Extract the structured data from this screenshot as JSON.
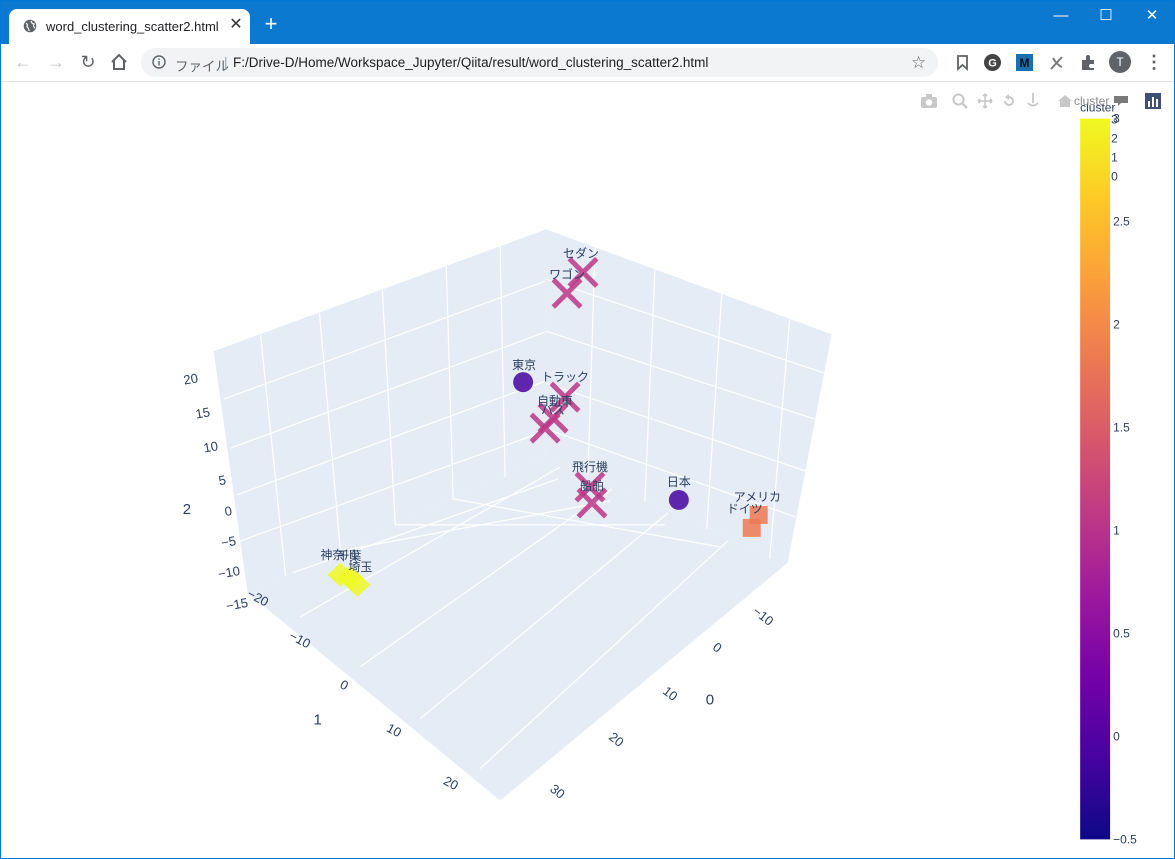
{
  "tab": {
    "title": "word_clustering_scatter2.html"
  },
  "window_controls": {
    "minimize": "—",
    "maximize": "☐",
    "close": "✕"
  },
  "address_bar": {
    "scheme_label": "ファイル",
    "separator": "|",
    "url": "F:/Drive-D/Home/Workspace_Jupyter/Qiita/result/word_clustering_scatter2.html"
  },
  "profile": {
    "initial": "T"
  },
  "modebar": {
    "tooltip": "cluster"
  },
  "colors": {
    "chrome_blue": "#0b79d0",
    "scene_bg": "#e5ecf6",
    "grid": "#ffffff"
  },
  "chart_data": {
    "type": "scatter",
    "scene": "3d",
    "axes": {
      "x": {
        "title": "0",
        "ticks": [
          "−10",
          "0",
          "10",
          "20",
          "30"
        ]
      },
      "y": {
        "title": "1",
        "ticks": [
          "−20",
          "−10",
          "0",
          "10",
          "20"
        ]
      },
      "z": {
        "title": "2",
        "ticks": [
          "−15",
          "−10",
          "−5",
          "0",
          "5",
          "10",
          "15",
          "20"
        ]
      }
    },
    "colorbar": {
      "title": "cluster",
      "ticks": [
        "−0.5",
        "0",
        "0.5",
        "1",
        "1.5",
        "2",
        "2.5",
        "3"
      ],
      "range": [
        -0.5,
        3
      ],
      "colorscale": [
        "#0d0887",
        "#46039f",
        "#7201a8",
        "#9c179e",
        "#bd3786",
        "#d8576b",
        "#ed7953",
        "#fb9f3a",
        "#fdca26",
        "#f0f921"
      ]
    },
    "legend": {
      "markers": [
        "3",
        "2",
        "1",
        "0"
      ]
    },
    "points": [
      {
        "label": "セダン",
        "cluster": 1,
        "symbol": "x"
      },
      {
        "label": "ワゴン",
        "cluster": 1,
        "symbol": "x"
      },
      {
        "label": "トラック",
        "cluster": 1,
        "symbol": "x"
      },
      {
        "label": "自動車",
        "cluster": 1,
        "symbol": "x"
      },
      {
        "label": "バス",
        "cluster": 1,
        "symbol": "x"
      },
      {
        "label": "飛行機",
        "cluster": 1,
        "symbol": "x"
      },
      {
        "label": "船舶",
        "cluster": 1,
        "symbol": "x"
      },
      {
        "label": "東京",
        "cluster": 0,
        "symbol": "circle"
      },
      {
        "label": "日本",
        "cluster": 0,
        "symbol": "circle"
      },
      {
        "label": "アメリカ",
        "cluster": 2,
        "symbol": "square"
      },
      {
        "label": "ドイツ",
        "cluster": 2,
        "symbol": "square"
      },
      {
        "label": "神奈川",
        "cluster": 3,
        "symbol": "diamond"
      },
      {
        "label": "千葉",
        "cluster": 3,
        "symbol": "diamond"
      },
      {
        "label": "埼玉",
        "cluster": 3,
        "symbol": "diamond"
      }
    ]
  }
}
